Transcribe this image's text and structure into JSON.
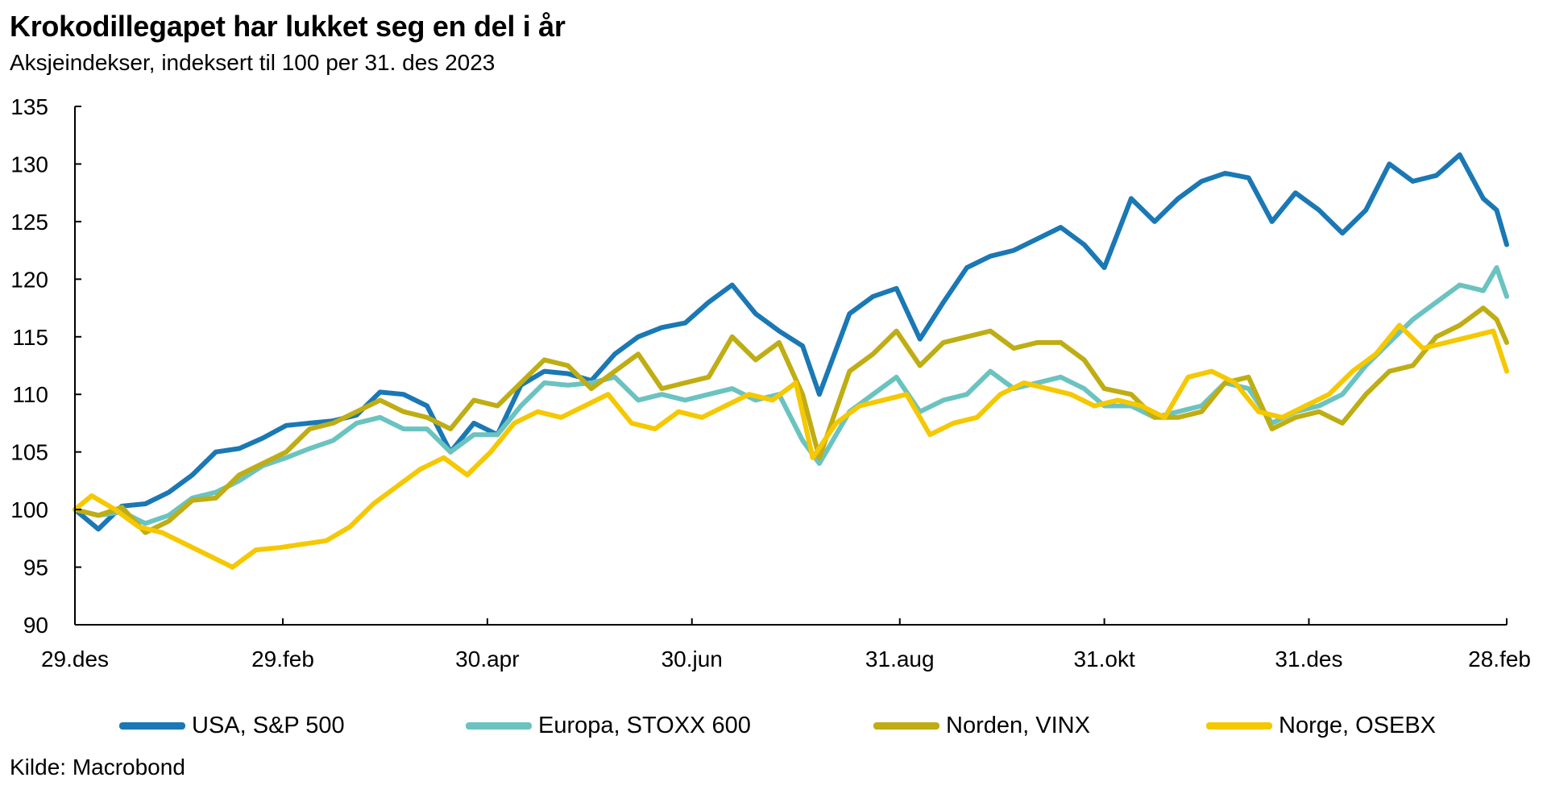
{
  "header": {
    "title": "Krokodillegapet har lukket seg en del i år",
    "subtitle": "Aksjeindekser, indeksert til 100 per 31. des 2023"
  },
  "footer": {
    "source": "Kilde: Macrobond"
  },
  "chart_data": {
    "type": "line",
    "title": "Krokodillegapet har lukket seg en del i år",
    "subtitle": "Aksjeindekser, indeksert til 100 per 31. des 2023",
    "xlabel": "",
    "ylabel": "",
    "ylim": [
      90,
      135
    ],
    "yticks": [
      90,
      95,
      100,
      105,
      110,
      115,
      120,
      125,
      130,
      135
    ],
    "xlim": [
      "2023-12-29",
      "2025-02-28"
    ],
    "xticks": [
      {
        "date": "2023-12-29",
        "label": "29.des"
      },
      {
        "date": "2024-02-29",
        "label": "29.feb"
      },
      {
        "date": "2024-04-30",
        "label": "30.apr"
      },
      {
        "date": "2024-06-30",
        "label": "30.jun"
      },
      {
        "date": "2024-08-31",
        "label": "31.aug"
      },
      {
        "date": "2024-10-31",
        "label": "31.okt"
      },
      {
        "date": "2024-12-31",
        "label": "31.des"
      },
      {
        "date": "2025-02-28",
        "label": "28.feb"
      }
    ],
    "grid": false,
    "legend_position": "bottom",
    "series": [
      {
        "name": "USA, S&P 500",
        "color": "#1a78b4",
        "points": [
          [
            "2023-12-29",
            100.0
          ],
          [
            "2024-01-05",
            98.3
          ],
          [
            "2024-01-12",
            100.3
          ],
          [
            "2024-01-19",
            100.5
          ],
          [
            "2024-01-26",
            101.5
          ],
          [
            "2024-02-02",
            103.0
          ],
          [
            "2024-02-09",
            105.0
          ],
          [
            "2024-02-16",
            105.3
          ],
          [
            "2024-02-23",
            106.2
          ],
          [
            "2024-03-01",
            107.3
          ],
          [
            "2024-03-08",
            107.5
          ],
          [
            "2024-03-15",
            107.7
          ],
          [
            "2024-03-22",
            108.2
          ],
          [
            "2024-03-29",
            110.2
          ],
          [
            "2024-04-05",
            110.0
          ],
          [
            "2024-04-12",
            109.0
          ],
          [
            "2024-04-19",
            105.0
          ],
          [
            "2024-04-26",
            107.5
          ],
          [
            "2024-05-03",
            106.5
          ],
          [
            "2024-05-10",
            110.8
          ],
          [
            "2024-05-17",
            112.0
          ],
          [
            "2024-05-24",
            111.8
          ],
          [
            "2024-05-31",
            111.2
          ],
          [
            "2024-06-07",
            113.5
          ],
          [
            "2024-06-14",
            115.0
          ],
          [
            "2024-06-21",
            115.8
          ],
          [
            "2024-06-28",
            116.2
          ],
          [
            "2024-07-05",
            118.0
          ],
          [
            "2024-07-12",
            119.5
          ],
          [
            "2024-07-19",
            117.0
          ],
          [
            "2024-07-26",
            115.5
          ],
          [
            "2024-08-02",
            114.2
          ],
          [
            "2024-08-07",
            110.0
          ],
          [
            "2024-08-16",
            117.0
          ],
          [
            "2024-08-23",
            118.5
          ],
          [
            "2024-08-30",
            119.2
          ],
          [
            "2024-09-06",
            114.8
          ],
          [
            "2024-09-13",
            118.0
          ],
          [
            "2024-09-20",
            121.0
          ],
          [
            "2024-09-27",
            122.0
          ],
          [
            "2024-10-04",
            122.5
          ],
          [
            "2024-10-11",
            123.5
          ],
          [
            "2024-10-18",
            124.5
          ],
          [
            "2024-10-25",
            123.0
          ],
          [
            "2024-10-31",
            121.0
          ],
          [
            "2024-11-08",
            127.0
          ],
          [
            "2024-11-15",
            125.0
          ],
          [
            "2024-11-22",
            127.0
          ],
          [
            "2024-11-29",
            128.5
          ],
          [
            "2024-12-06",
            129.2
          ],
          [
            "2024-12-13",
            128.8
          ],
          [
            "2024-12-20",
            125.0
          ],
          [
            "2024-12-27",
            127.5
          ],
          [
            "2025-01-03",
            126.0
          ],
          [
            "2025-01-10",
            124.0
          ],
          [
            "2025-01-17",
            126.0
          ],
          [
            "2025-01-24",
            130.0
          ],
          [
            "2025-01-31",
            128.5
          ],
          [
            "2025-02-07",
            129.0
          ],
          [
            "2025-02-14",
            130.8
          ],
          [
            "2025-02-21",
            127.0
          ],
          [
            "2025-02-25",
            126.0
          ],
          [
            "2025-02-28",
            123.0
          ]
        ]
      },
      {
        "name": "Europa, STOXX 600",
        "color": "#6bc3c0",
        "points": [
          [
            "2023-12-29",
            100.0
          ],
          [
            "2024-01-05",
            99.5
          ],
          [
            "2024-01-12",
            99.8
          ],
          [
            "2024-01-19",
            98.8
          ],
          [
            "2024-01-26",
            99.5
          ],
          [
            "2024-02-02",
            101.0
          ],
          [
            "2024-02-09",
            101.5
          ],
          [
            "2024-02-16",
            102.5
          ],
          [
            "2024-02-23",
            103.8
          ],
          [
            "2024-03-01",
            104.5
          ],
          [
            "2024-03-08",
            105.3
          ],
          [
            "2024-03-15",
            106.0
          ],
          [
            "2024-03-22",
            107.5
          ],
          [
            "2024-03-29",
            108.0
          ],
          [
            "2024-04-05",
            107.0
          ],
          [
            "2024-04-12",
            107.0
          ],
          [
            "2024-04-19",
            105.0
          ],
          [
            "2024-04-26",
            106.5
          ],
          [
            "2024-05-03",
            106.5
          ],
          [
            "2024-05-10",
            109.0
          ],
          [
            "2024-05-17",
            111.0
          ],
          [
            "2024-05-24",
            110.8
          ],
          [
            "2024-05-31",
            111.0
          ],
          [
            "2024-06-07",
            111.5
          ],
          [
            "2024-06-14",
            109.5
          ],
          [
            "2024-06-21",
            110.0
          ],
          [
            "2024-06-28",
            109.5
          ],
          [
            "2024-07-05",
            110.0
          ],
          [
            "2024-07-12",
            110.5
          ],
          [
            "2024-07-19",
            109.5
          ],
          [
            "2024-07-26",
            110.0
          ],
          [
            "2024-08-02",
            106.0
          ],
          [
            "2024-08-07",
            104.0
          ],
          [
            "2024-08-16",
            108.5
          ],
          [
            "2024-08-23",
            110.0
          ],
          [
            "2024-08-30",
            111.5
          ],
          [
            "2024-09-06",
            108.5
          ],
          [
            "2024-09-13",
            109.5
          ],
          [
            "2024-09-20",
            110.0
          ],
          [
            "2024-09-27",
            112.0
          ],
          [
            "2024-10-04",
            110.5
          ],
          [
            "2024-10-11",
            111.0
          ],
          [
            "2024-10-18",
            111.5
          ],
          [
            "2024-10-25",
            110.5
          ],
          [
            "2024-10-31",
            109.0
          ],
          [
            "2024-11-08",
            109.0
          ],
          [
            "2024-11-15",
            108.0
          ],
          [
            "2024-11-22",
            108.5
          ],
          [
            "2024-11-29",
            109.0
          ],
          [
            "2024-12-06",
            111.0
          ],
          [
            "2024-12-13",
            110.5
          ],
          [
            "2024-12-20",
            107.5
          ],
          [
            "2024-12-27",
            108.5
          ],
          [
            "2025-01-03",
            109.0
          ],
          [
            "2025-01-10",
            110.0
          ],
          [
            "2025-01-17",
            112.5
          ],
          [
            "2025-01-24",
            114.5
          ],
          [
            "2025-01-31",
            116.5
          ],
          [
            "2025-02-07",
            118.0
          ],
          [
            "2025-02-14",
            119.5
          ],
          [
            "2025-02-21",
            119.0
          ],
          [
            "2025-02-25",
            121.0
          ],
          [
            "2025-02-28",
            118.5
          ]
        ]
      },
      {
        "name": "Norden, VINX",
        "color": "#bfad14",
        "points": [
          [
            "2023-12-29",
            100.0
          ],
          [
            "2024-01-05",
            99.5
          ],
          [
            "2024-01-12",
            100.2
          ],
          [
            "2024-01-19",
            98.0
          ],
          [
            "2024-01-26",
            99.0
          ],
          [
            "2024-02-02",
            100.8
          ],
          [
            "2024-02-09",
            101.0
          ],
          [
            "2024-02-16",
            103.0
          ],
          [
            "2024-02-23",
            104.0
          ],
          [
            "2024-03-01",
            105.0
          ],
          [
            "2024-03-08",
            107.0
          ],
          [
            "2024-03-15",
            107.5
          ],
          [
            "2024-03-22",
            108.5
          ],
          [
            "2024-03-29",
            109.5
          ],
          [
            "2024-04-05",
            108.5
          ],
          [
            "2024-04-12",
            108.0
          ],
          [
            "2024-04-19",
            107.0
          ],
          [
            "2024-04-26",
            109.5
          ],
          [
            "2024-05-03",
            109.0
          ],
          [
            "2024-05-10",
            111.0
          ],
          [
            "2024-05-17",
            113.0
          ],
          [
            "2024-05-24",
            112.5
          ],
          [
            "2024-05-31",
            110.5
          ],
          [
            "2024-06-07",
            112.0
          ],
          [
            "2024-06-14",
            113.5
          ],
          [
            "2024-06-21",
            110.5
          ],
          [
            "2024-06-28",
            111.0
          ],
          [
            "2024-07-05",
            111.5
          ],
          [
            "2024-07-12",
            115.0
          ],
          [
            "2024-07-19",
            113.0
          ],
          [
            "2024-07-26",
            114.5
          ],
          [
            "2024-08-02",
            110.0
          ],
          [
            "2024-08-07",
            104.5
          ],
          [
            "2024-08-16",
            112.0
          ],
          [
            "2024-08-23",
            113.5
          ],
          [
            "2024-08-30",
            115.5
          ],
          [
            "2024-09-06",
            112.5
          ],
          [
            "2024-09-13",
            114.5
          ],
          [
            "2024-09-20",
            115.0
          ],
          [
            "2024-09-27",
            115.5
          ],
          [
            "2024-10-04",
            114.0
          ],
          [
            "2024-10-11",
            114.5
          ],
          [
            "2024-10-18",
            114.5
          ],
          [
            "2024-10-25",
            113.0
          ],
          [
            "2024-10-31",
            110.5
          ],
          [
            "2024-11-08",
            110.0
          ],
          [
            "2024-11-15",
            108.0
          ],
          [
            "2024-11-22",
            108.0
          ],
          [
            "2024-11-29",
            108.5
          ],
          [
            "2024-12-06",
            111.0
          ],
          [
            "2024-12-13",
            111.5
          ],
          [
            "2024-12-20",
            107.0
          ],
          [
            "2024-12-27",
            108.0
          ],
          [
            "2025-01-03",
            108.5
          ],
          [
            "2025-01-10",
            107.5
          ],
          [
            "2025-01-17",
            110.0
          ],
          [
            "2025-01-24",
            112.0
          ],
          [
            "2025-01-31",
            112.5
          ],
          [
            "2025-02-07",
            115.0
          ],
          [
            "2025-02-14",
            116.0
          ],
          [
            "2025-02-21",
            117.5
          ],
          [
            "2025-02-25",
            116.5
          ],
          [
            "2025-02-28",
            114.5
          ]
        ]
      },
      {
        "name": "Norge, OSEBX",
        "color": "#f5c800",
        "points": [
          [
            "2023-12-29",
            100.0
          ],
          [
            "2024-01-03",
            101.2
          ],
          [
            "2024-01-10",
            100.0
          ],
          [
            "2024-01-17",
            98.5
          ],
          [
            "2024-01-24",
            98.0
          ],
          [
            "2024-01-31",
            97.0
          ],
          [
            "2024-02-07",
            96.0
          ],
          [
            "2024-02-14",
            95.0
          ],
          [
            "2024-02-21",
            96.5
          ],
          [
            "2024-02-28",
            96.7
          ],
          [
            "2024-03-06",
            97.0
          ],
          [
            "2024-03-13",
            97.3
          ],
          [
            "2024-03-20",
            98.5
          ],
          [
            "2024-03-27",
            100.5
          ],
          [
            "2024-04-03",
            102.0
          ],
          [
            "2024-04-10",
            103.5
          ],
          [
            "2024-04-17",
            104.5
          ],
          [
            "2024-04-24",
            103.0
          ],
          [
            "2024-05-01",
            105.0
          ],
          [
            "2024-05-08",
            107.5
          ],
          [
            "2024-05-15",
            108.5
          ],
          [
            "2024-05-22",
            108.0
          ],
          [
            "2024-05-29",
            109.0
          ],
          [
            "2024-06-05",
            110.0
          ],
          [
            "2024-06-12",
            107.5
          ],
          [
            "2024-06-19",
            107.0
          ],
          [
            "2024-06-26",
            108.5
          ],
          [
            "2024-07-03",
            108.0
          ],
          [
            "2024-07-10",
            109.0
          ],
          [
            "2024-07-17",
            110.0
          ],
          [
            "2024-07-24",
            109.5
          ],
          [
            "2024-07-31",
            111.0
          ],
          [
            "2024-08-05",
            104.5
          ],
          [
            "2024-08-12",
            107.5
          ],
          [
            "2024-08-19",
            109.0
          ],
          [
            "2024-08-26",
            109.5
          ],
          [
            "2024-09-02",
            110.0
          ],
          [
            "2024-09-09",
            106.5
          ],
          [
            "2024-09-16",
            107.5
          ],
          [
            "2024-09-23",
            108.0
          ],
          [
            "2024-09-30",
            110.0
          ],
          [
            "2024-10-07",
            111.0
          ],
          [
            "2024-10-14",
            110.5
          ],
          [
            "2024-10-21",
            110.0
          ],
          [
            "2024-10-28",
            109.0
          ],
          [
            "2024-11-04",
            109.5
          ],
          [
            "2024-11-11",
            109.0
          ],
          [
            "2024-11-18",
            108.0
          ],
          [
            "2024-11-25",
            111.5
          ],
          [
            "2024-12-02",
            112.0
          ],
          [
            "2024-12-09",
            111.0
          ],
          [
            "2024-12-16",
            108.5
          ],
          [
            "2024-12-23",
            108.0
          ],
          [
            "2024-12-30",
            109.0
          ],
          [
            "2025-01-06",
            110.0
          ],
          [
            "2025-01-13",
            112.0
          ],
          [
            "2025-01-20",
            113.5
          ],
          [
            "2025-01-27",
            116.0
          ],
          [
            "2025-02-03",
            114.0
          ],
          [
            "2025-02-10",
            114.5
          ],
          [
            "2025-02-17",
            115.0
          ],
          [
            "2025-02-24",
            115.5
          ],
          [
            "2025-02-28",
            112.0
          ]
        ]
      }
    ]
  }
}
